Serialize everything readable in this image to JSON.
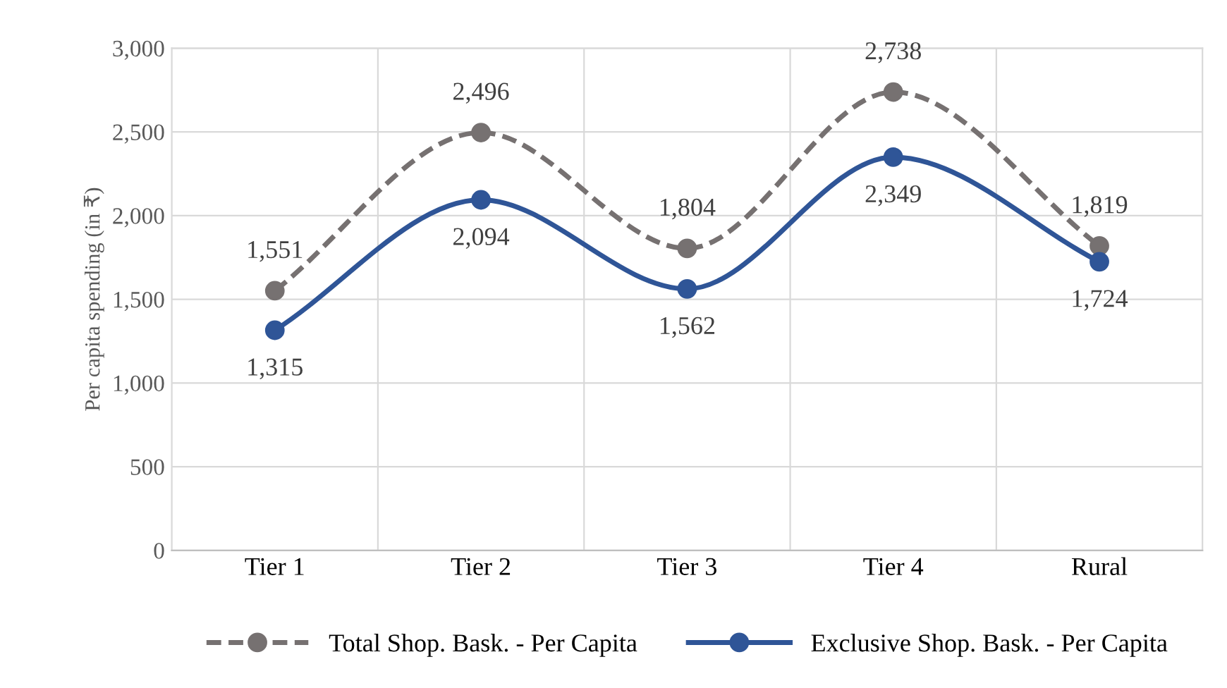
{
  "chart_data": {
    "type": "line",
    "ylabel": "Per capita spending (in ₹)",
    "categories": [
      "Tier 1",
      "Tier 2",
      "Tier 3",
      "Tier 4",
      "Rural"
    ],
    "series": [
      {
        "name": "Total Shop. Bask. - Per Capita",
        "color": "#767171",
        "values": [
          1551,
          2496,
          1804,
          2738,
          1819
        ],
        "value_labels": [
          "1,551",
          "2,496",
          "1,804",
          "2,738",
          "1,819"
        ],
        "line_style": "dashed"
      },
      {
        "name": "Exclusive Shop. Bask. - Per Capita",
        "color": "#2f5597",
        "values": [
          1315,
          2094,
          1562,
          2349,
          1724
        ],
        "value_labels": [
          "1,315",
          "2,094",
          "1,562",
          "2,349",
          "1,724"
        ],
        "line_style": "solid"
      }
    ],
    "ylim": [
      0,
      3000
    ],
    "yticks": [
      {
        "value": 0,
        "label": "0"
      },
      {
        "value": 500,
        "label": "500"
      },
      {
        "value": 1000,
        "label": "1,000"
      },
      {
        "value": 1500,
        "label": "1,500"
      },
      {
        "value": 2000,
        "label": "2,000"
      },
      {
        "value": 2500,
        "label": "2,500"
      },
      {
        "value": 3000,
        "label": "3,000"
      }
    ],
    "grid": true,
    "legend": "bottom",
    "marker": "circle"
  }
}
